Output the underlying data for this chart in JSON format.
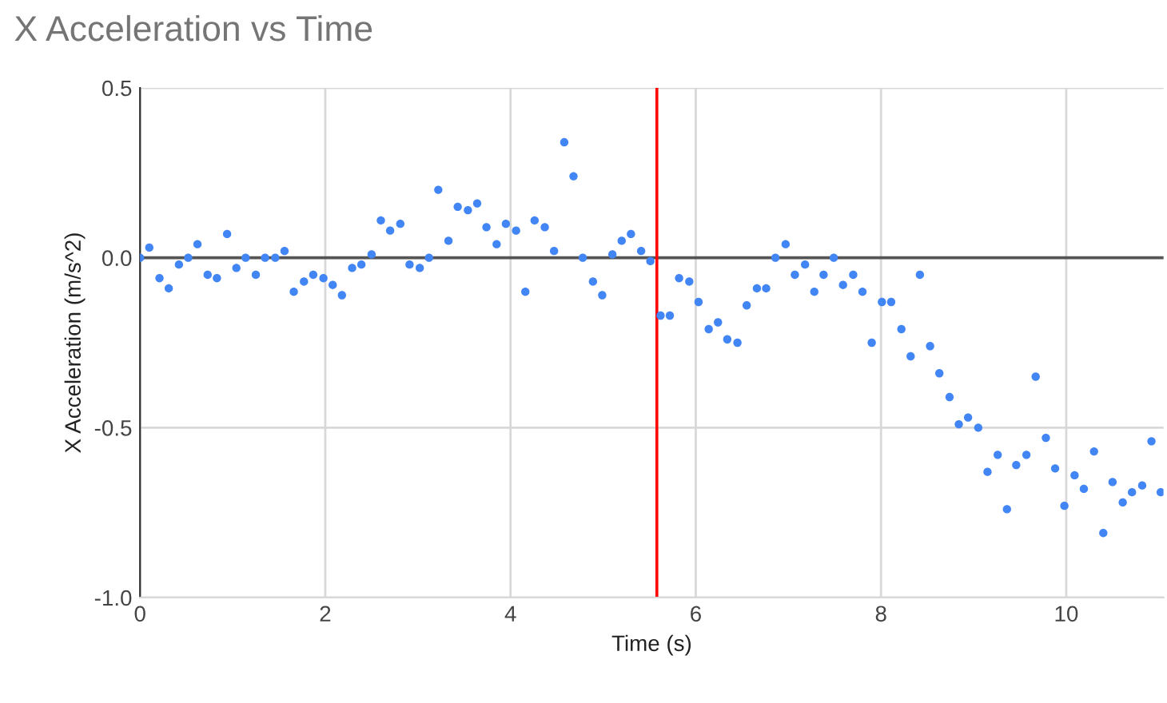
{
  "chart_data": {
    "type": "scatter",
    "title": "X Acceleration vs Time",
    "xlabel": "Time (s)",
    "ylabel": "X Acceleration (m/s^2)",
    "x": [
      0,
      0.1,
      0.21,
      0.31,
      0.42,
      0.52,
      0.62,
      0.73,
      0.83,
      0.94,
      1.04,
      1.14,
      1.25,
      1.35,
      1.46,
      1.56,
      1.66,
      1.77,
      1.87,
      1.98,
      2.08,
      2.18,
      2.29,
      2.39,
      2.5,
      2.6,
      2.7,
      2.81,
      2.91,
      3.02,
      3.12,
      3.22,
      3.33,
      3.43,
      3.54,
      3.64,
      3.74,
      3.85,
      3.95,
      4.06,
      4.16,
      4.26,
      4.37,
      4.47,
      4.58,
      4.68,
      4.78,
      4.89,
      4.99,
      5.1,
      5.2,
      5.3,
      5.41,
      5.51,
      5.62,
      5.72,
      5.82,
      5.93,
      6.03,
      6.14,
      6.24,
      6.34,
      6.45,
      6.55,
      6.66,
      6.76,
      6.86,
      6.97,
      7.07,
      7.18,
      7.28,
      7.38,
      7.49,
      7.59,
      7.7,
      7.8,
      7.9,
      8.01,
      8.11,
      8.22,
      8.32,
      8.42,
      8.53,
      8.63,
      8.74,
      8.84,
      8.94,
      9.05,
      9.15,
      9.26,
      9.36,
      9.46,
      9.57,
      9.67,
      9.78,
      9.88,
      9.98,
      10.09,
      10.19,
      10.3,
      10.4,
      10.5,
      10.61,
      10.71,
      10.82,
      10.92,
      11.02
    ],
    "series": [
      {
        "color": "#4285f4",
        "values": [
          0.0,
          0.03,
          -0.06,
          -0.09,
          -0.02,
          0.0,
          0.04,
          -0.05,
          -0.06,
          0.07,
          -0.03,
          0.0,
          -0.05,
          0.0,
          0.0,
          0.02,
          -0.1,
          -0.07,
          -0.05,
          -0.06,
          -0.08,
          -0.11,
          -0.03,
          -0.02,
          0.01,
          0.11,
          0.08,
          0.1,
          -0.02,
          -0.03,
          0.0,
          0.2,
          0.05,
          0.15,
          0.14,
          0.16,
          0.09,
          0.04,
          0.1,
          0.08,
          -0.1,
          0.11,
          0.09,
          0.02,
          0.34,
          0.24,
          0.0,
          -0.07,
          -0.11,
          0.01,
          0.05,
          0.07,
          0.02,
          -0.01,
          -0.17,
          -0.17,
          -0.06,
          -0.07,
          -0.13,
          -0.21,
          -0.19,
          -0.24,
          -0.25,
          -0.14,
          -0.09,
          -0.09,
          0.0,
          0.04,
          -0.05,
          -0.02,
          -0.1,
          -0.05,
          0.0,
          -0.08,
          -0.05,
          -0.1,
          -0.25,
          -0.13,
          -0.13,
          -0.21,
          -0.29,
          -0.05,
          -0.26,
          -0.34,
          -0.41,
          -0.49,
          -0.47,
          -0.5,
          -0.63,
          -0.58,
          -0.74,
          -0.61,
          -0.58,
          -0.35,
          -0.53,
          -0.62,
          -0.73,
          -0.64,
          -0.68,
          -0.57,
          -0.81,
          -0.66,
          -0.72,
          -0.69,
          -0.67,
          -0.54,
          -0.69
        ]
      }
    ],
    "xlim": [
      0,
      11.05
    ],
    "ylim": [
      -1.0,
      0.5
    ],
    "xticks": [
      0,
      2,
      4,
      6,
      8,
      10
    ],
    "yticks": [
      {
        "value": 0.5,
        "label": "0.5"
      },
      {
        "value": 0.0,
        "label": "0.0"
      },
      {
        "value": -0.5,
        "label": "-0.5"
      },
      {
        "value": -1.0,
        "label": "-1.0"
      }
    ],
    "ref_lines": [
      {
        "axis": "y",
        "value": 0,
        "color": "#555555"
      },
      {
        "axis": "x",
        "value": 5.58,
        "color": "#ff0000"
      }
    ],
    "grid": true,
    "marker": "circle",
    "legend": false
  }
}
